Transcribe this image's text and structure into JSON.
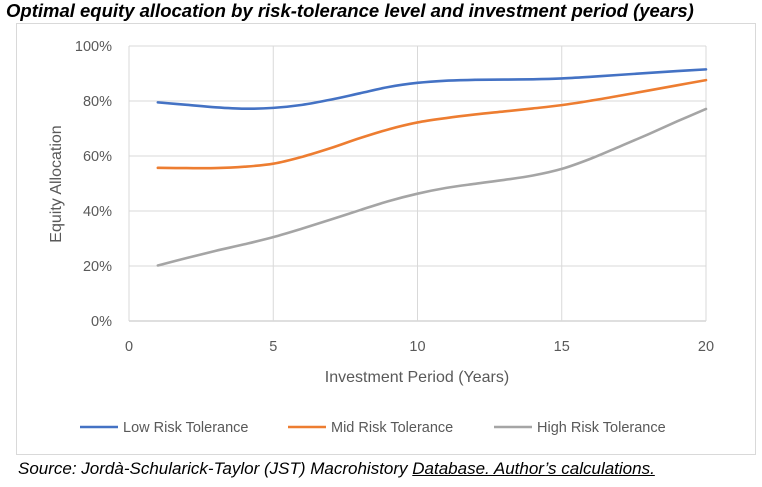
{
  "title": "Optimal equity allocation by risk-tolerance level and investment period (years)",
  "source": {
    "prefix": "Source: Jordà-Schularick-Taylor (JST) Macrohistory ",
    "link": "Database. Author’s calculations."
  },
  "chart_data": {
    "type": "line",
    "title": "",
    "xlabel": "Investment Period (Years)",
    "ylabel": "Equity Allocation",
    "xlim": [
      0,
      20
    ],
    "ylim": [
      0,
      1
    ],
    "xticks": [
      0,
      5,
      10,
      15,
      20
    ],
    "yticks": [
      0,
      0.2,
      0.4,
      0.6,
      0.8,
      1.0
    ],
    "ytick_labels": [
      "0%",
      "20%",
      "40%",
      "60%",
      "80%",
      "100%"
    ],
    "grid": true,
    "legend_position": "bottom",
    "series": [
      {
        "name": "Low Risk Tolerance",
        "color": "#4472c4",
        "x": [
          1,
          2,
          3,
          4,
          5,
          6,
          7,
          8,
          9,
          10,
          11,
          12,
          13,
          14,
          15,
          16,
          17,
          18,
          19,
          20
        ],
        "values": [
          0.795,
          0.786,
          0.777,
          0.772,
          0.775,
          0.786,
          0.805,
          0.828,
          0.851,
          0.866,
          0.874,
          0.877,
          0.878,
          0.879,
          0.882,
          0.888,
          0.895,
          0.902,
          0.909,
          0.915
        ]
      },
      {
        "name": "Mid Risk Tolerance",
        "color": "#ed7d31",
        "x": [
          1,
          2,
          3,
          4,
          5,
          6,
          7,
          8,
          9,
          10,
          11,
          12,
          13,
          14,
          15,
          16,
          17,
          18,
          19,
          20
        ],
        "values": [
          0.557,
          0.556,
          0.556,
          0.561,
          0.572,
          0.597,
          0.629,
          0.665,
          0.697,
          0.722,
          0.738,
          0.751,
          0.762,
          0.773,
          0.785,
          0.801,
          0.819,
          0.838,
          0.857,
          0.876
        ]
      },
      {
        "name": "High Risk Tolerance",
        "color": "#a5a5a5",
        "x": [
          1,
          2,
          3,
          4,
          5,
          6,
          7,
          8,
          9,
          10,
          11,
          12,
          13,
          14,
          15,
          16,
          17,
          18,
          19,
          20
        ],
        "values": [
          0.202,
          0.229,
          0.255,
          0.279,
          0.305,
          0.336,
          0.369,
          0.403,
          0.436,
          0.463,
          0.484,
          0.499,
          0.513,
          0.529,
          0.553,
          0.59,
          0.634,
          0.679,
          0.726,
          0.771
        ]
      }
    ]
  }
}
